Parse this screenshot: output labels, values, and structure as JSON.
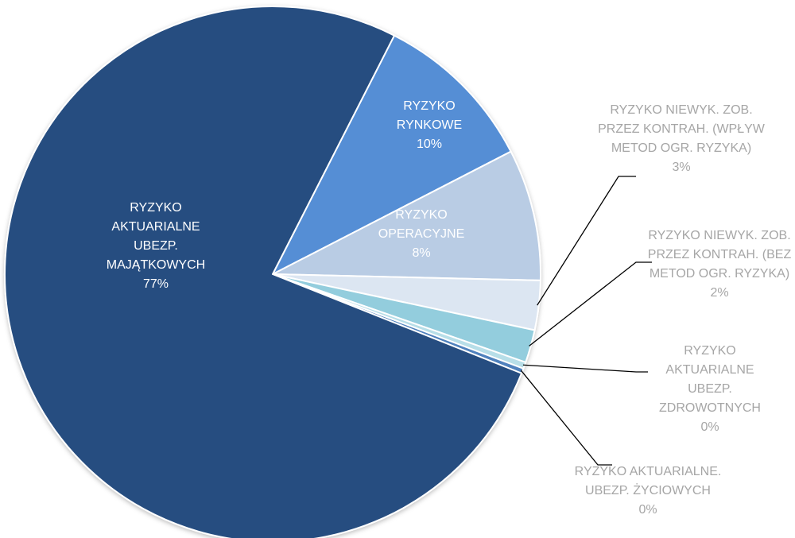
{
  "chart_data": {
    "type": "pie",
    "categories": [
      "RYZYKO RYNKOWE",
      "RYZYKO OPERACYJNE",
      "RYZYKO NIEWYK. ZOB. PRZEZ KONTRAH. (WPŁYW METOD OGR. RYZYKA)",
      "RYZYKO NIEWYK. ZOB. PRZEZ KONTRAH. (BEZ METOD OGR. RYZYKA)",
      "RYZYKO AKTUARIALNE UBEZP. ZDROWOTNYCH",
      "RYZYKO AKTUARIALNE. UBEZP. ŻYCIOWYCH",
      "RYZYKO AKTUARIALNE UBEZP. MAJĄTKOWYCH"
    ],
    "values": [
      10,
      8,
      3,
      2,
      0.4,
      0.3,
      77
    ],
    "value_labels": [
      "10%",
      "8%",
      "3%",
      "2%",
      "0%",
      "0%",
      "77%"
    ],
    "colors": [
      "#558ed5",
      "#b9cce4",
      "#dce6f2",
      "#93cddd",
      "#b7dee8",
      "#4f81bd",
      "#254d80"
    ]
  }
}
